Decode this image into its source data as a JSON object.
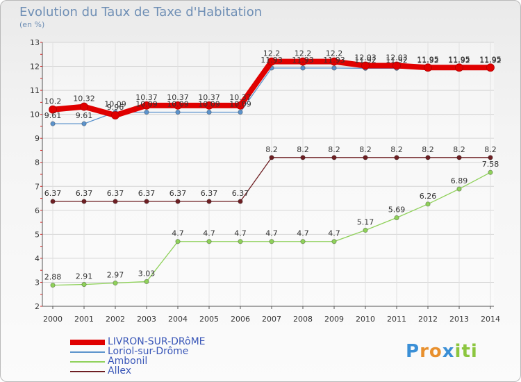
{
  "title": "Evolution du Taux de Taxe d'Habitation",
  "unit": "(en %)",
  "brand": {
    "letters": [
      "P",
      "r",
      "o",
      "x",
      "i",
      "t",
      "i"
    ],
    "colors": [
      "#3a8fd6",
      "#e8902e",
      "#e8902e",
      "#3a8fd6",
      "#8cc63f",
      "#8cc63f",
      "#8cc63f"
    ]
  },
  "legend": {
    "items": [
      {
        "label": "LIVRON-SUR-DRôME",
        "color": "#e00000"
      },
      {
        "label": "Loriol-sur-Drôme",
        "color": "#5c93cc"
      },
      {
        "label": "Ambonil",
        "color": "#8fd15a"
      },
      {
        "label": "Allex",
        "color": "#6e1f23"
      }
    ]
  },
  "chart_data": {
    "type": "line",
    "x": [
      "2000",
      "2001",
      "2002",
      "2003",
      "2004",
      "2005",
      "2006",
      "2007",
      "2008",
      "2009",
      "2010",
      "2011",
      "2012",
      "2013",
      "2014"
    ],
    "ylim": [
      2,
      13
    ],
    "yticks": [
      "2",
      "3",
      "4",
      "5",
      "6",
      "7",
      "8",
      "9",
      "10",
      "11",
      "12",
      "13"
    ],
    "grid": true,
    "series": [
      {
        "name": "LIVRON-SUR-DRôME",
        "color": "#e00000",
        "width": 8,
        "values": [
          10.2,
          10.32,
          9.96,
          10.37,
          10.37,
          10.37,
          10.37,
          12.2,
          12.2,
          12.2,
          12.03,
          12.03,
          11.95,
          11.95,
          11.95
        ],
        "labels": [
          "10.2",
          "10.32",
          "9.96",
          "10.37",
          "10.37",
          "10.37",
          "10.37",
          "12.2",
          "12.2",
          "12.2",
          "12.03",
          "12.03",
          "11.95",
          "11.95",
          "11.95"
        ]
      },
      {
        "name": "Loriol-sur-Drôme",
        "color": "#5c93cc",
        "width": 1.3,
        "values": [
          9.61,
          9.61,
          10.09,
          10.09,
          10.09,
          10.09,
          10.09,
          11.93,
          11.93,
          11.93,
          11.92,
          11.92,
          11.92,
          11.92,
          11.92
        ],
        "labels": [
          "9.61",
          "9.61",
          "10.09",
          "10.09",
          "10.09",
          "10.09",
          "10.09",
          "11.93",
          "11.93",
          "11.93",
          "11.92",
          "11.92",
          "11.92",
          "11.92",
          "11.92"
        ]
      },
      {
        "name": "Ambonil",
        "color": "#8fd15a",
        "width": 1.3,
        "values": [
          2.88,
          2.91,
          2.97,
          3.03,
          4.7,
          4.7,
          4.7,
          4.7,
          4.7,
          4.7,
          5.17,
          5.69,
          6.26,
          6.89,
          7.58
        ],
        "labels": [
          "2.88",
          "2.91",
          "2.97",
          "3.03",
          "4.7",
          "4.7",
          "4.7",
          "4.7",
          "4.7",
          "4.7",
          "5.17",
          "5.69",
          "6.26",
          "6.89",
          "7.58"
        ]
      },
      {
        "name": "Allex",
        "color": "#6e1f23",
        "width": 1.3,
        "values": [
          6.37,
          6.37,
          6.37,
          6.37,
          6.37,
          6.37,
          6.37,
          8.2,
          8.2,
          8.2,
          8.2,
          8.2,
          8.2,
          8.2,
          8.2
        ],
        "labels": [
          "6.37",
          "6.37",
          "6.37",
          "6.37",
          "6.37",
          "6.37",
          "6.37",
          "8.2",
          "8.2",
          "8.2",
          "8.2",
          "8.2",
          "8.2",
          "8.2",
          "8.2"
        ]
      }
    ]
  }
}
